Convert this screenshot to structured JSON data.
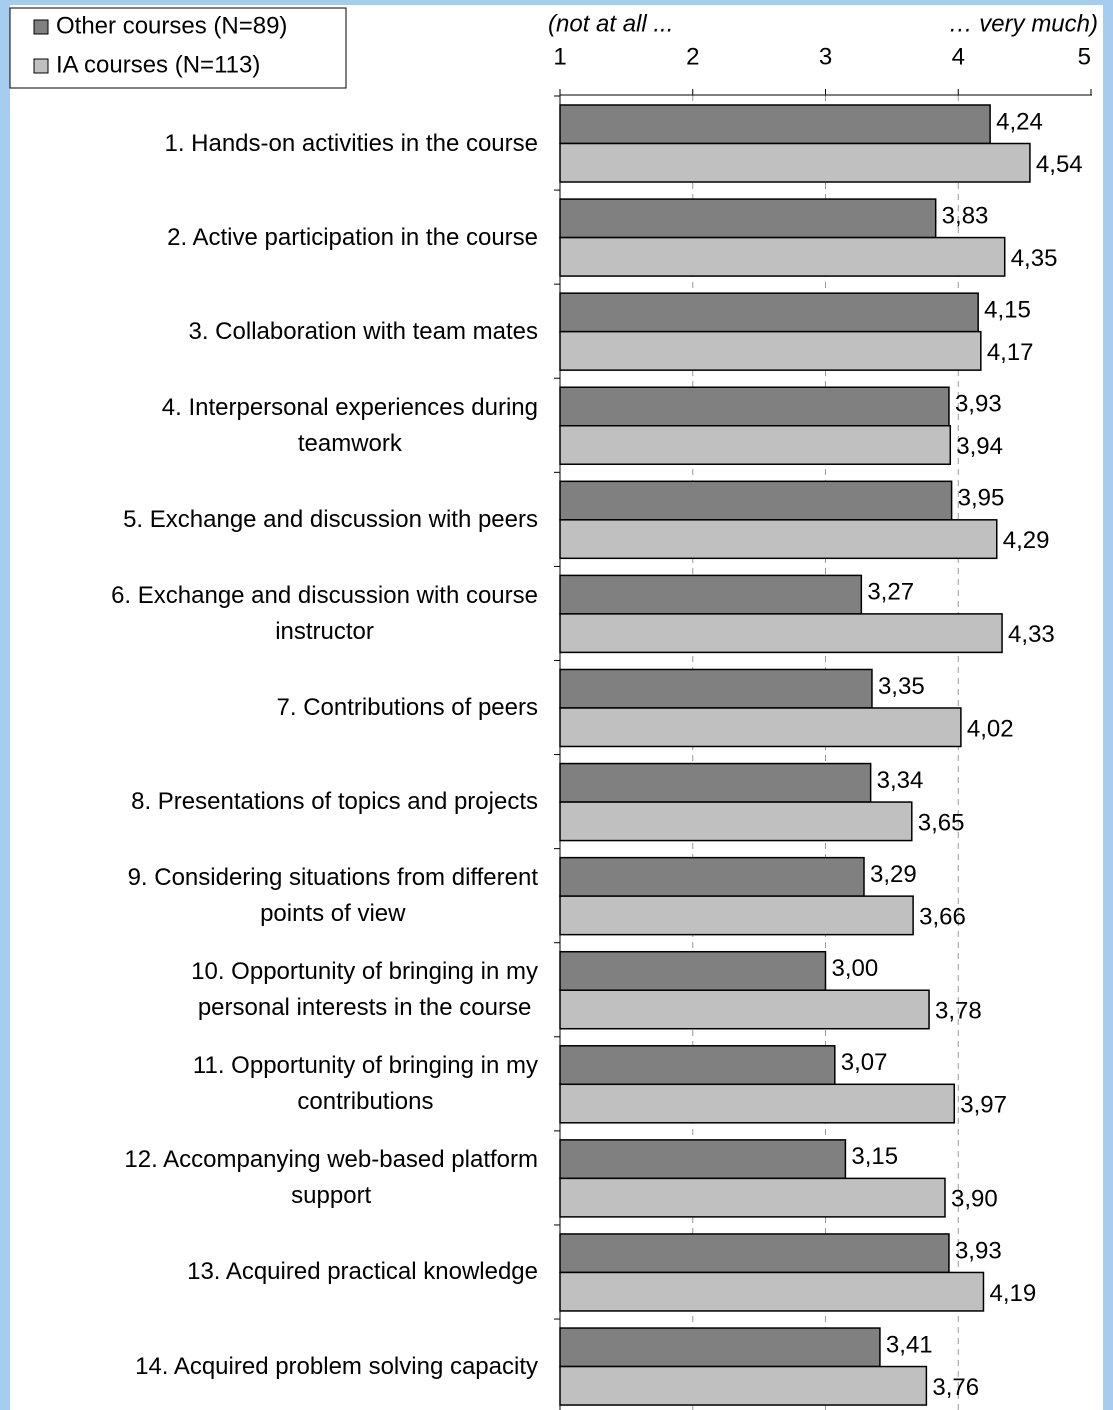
{
  "chart_data": {
    "type": "barh",
    "axis_note_left": "(not at all ...",
    "axis_note_right": "… very much)",
    "categories": [
      "1. Hands-on activities in the course",
      "2. Active participation in the course",
      "3. Collaboration with team mates",
      "4. Interpersonal experiences during\nteamwork",
      "5. Exchange and discussion with peers",
      "6. Exchange and discussion with course\ninstructor",
      "7. Contributions of peers",
      "8. Presentations of topics and projects",
      "9. Considering situations from different\npoints of view",
      "10. Opportunity of bringing in my\npersonal interests in the course",
      "11. Opportunity of bringing in my\ncontributions",
      "12. Accompanying web-based platform\nsupport",
      "13. Acquired practical knowledge",
      "14. Acquired problem solving capacity"
    ],
    "series": [
      {
        "name": "Other courses (N=89)",
        "color": "#808080",
        "values": [
          4.24,
          3.83,
          4.15,
          3.93,
          3.95,
          3.27,
          3.35,
          3.34,
          3.29,
          3.0,
          3.07,
          3.15,
          3.93,
          3.41
        ],
        "value_labels": [
          "4,24",
          "3,83",
          "4,15",
          "3,93",
          "3,95",
          "3,27",
          "3,35",
          "3,34",
          "3,29",
          "3,00",
          "3,07",
          "3,15",
          "3,93",
          "3,41"
        ]
      },
      {
        "name": "IA courses (N=113)",
        "color": "#c0c0c0",
        "values": [
          4.54,
          4.35,
          4.17,
          3.94,
          4.29,
          4.33,
          4.02,
          3.65,
          3.66,
          3.78,
          3.97,
          3.9,
          4.19,
          3.76
        ],
        "value_labels": [
          "4,54",
          "4,35",
          "4,17",
          "3,94",
          "4,29",
          "4,33",
          "4,02",
          "3,65",
          "3,66",
          "3,78",
          "3,97",
          "3,90",
          "4,19",
          "3,76"
        ]
      }
    ],
    "xlim": [
      1,
      5
    ],
    "xticks": [
      1,
      2,
      3,
      4,
      5
    ],
    "grid": true,
    "legend": "top-left"
  }
}
